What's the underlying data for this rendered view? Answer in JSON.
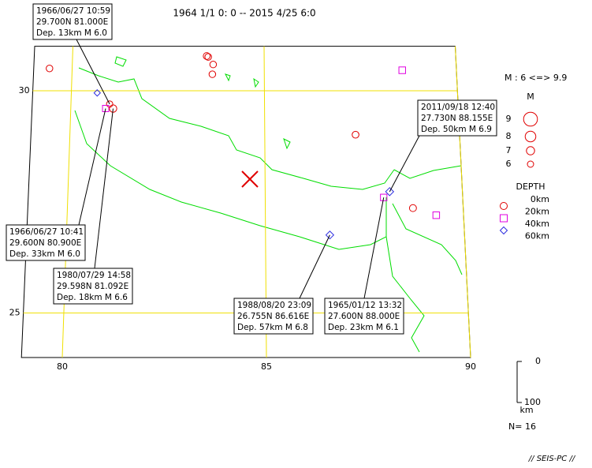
{
  "title": "1964 1/1 0: 0 -- 2015 4/25 6:0",
  "map": {
    "lon_range": [
      79,
      90
    ],
    "lat_range": [
      24,
      31
    ],
    "lon_ticks": [
      80,
      85,
      90
    ],
    "lat_ticks": [
      25,
      30
    ]
  },
  "legend": {
    "magnitude_range": "M : 6 <=> 9.9",
    "magnitude_title": "M",
    "magnitudes": [
      9,
      8,
      7,
      6
    ],
    "depth_title": "DEPTH",
    "depths": [
      {
        "value": 0,
        "label": "0km"
      },
      {
        "value": 20,
        "label": "20km"
      },
      {
        "value": 40,
        "label": "40km"
      },
      {
        "value": 60,
        "label": "60km"
      }
    ],
    "depth_scale": {
      "ticks": [
        0,
        100
      ],
      "unit": "km"
    }
  },
  "count": "N= 16",
  "footer": "// SEIS-PC //",
  "events": [
    {
      "lon": 81.0,
      "lat": 29.7,
      "depth": 13,
      "mag": 6.0,
      "callout": {
        "time": "1966/06/27 10:59",
        "position": "29.700N  81.000E",
        "detail": "Dep. 13km   M 6.0"
      }
    },
    {
      "lon": 80.9,
      "lat": 29.6,
      "depth": 33,
      "mag": 6.0,
      "callout": {
        "time": "1966/06/27 10:41",
        "position": "29.600N  80.900E",
        "detail": "Dep. 33km   M 6.0"
      }
    },
    {
      "lon": 81.092,
      "lat": 29.598,
      "depth": 18,
      "mag": 6.6,
      "callout": {
        "time": "1980/07/29 14:58",
        "position": "29.598N  81.092E",
        "detail": "Dep. 18km   M 6.6"
      }
    },
    {
      "lon": 86.616,
      "lat": 26.755,
      "depth": 57,
      "mag": 6.8,
      "callout": {
        "time": "1988/08/20 23:09",
        "position": "26.755N  86.616E",
        "detail": "Dep. 57km   M 6.8"
      }
    },
    {
      "lon": 88.0,
      "lat": 27.6,
      "depth": 23,
      "mag": 6.1,
      "callout": {
        "time": "1965/01/12 13:32",
        "position": "27.600N  88.000E",
        "detail": "Dep. 23km   M 6.1"
      }
    },
    {
      "lon": 88.155,
      "lat": 27.73,
      "depth": 50,
      "mag": 6.9,
      "callout": {
        "time": "2011/09/18 12:40",
        "position": "27.730N  88.155E",
        "detail": "Dep. 50km   M 6.9"
      }
    },
    {
      "lon": 79.41,
      "lat": 30.5,
      "depth": 5,
      "mag": 6.2
    },
    {
      "lon": 83.5,
      "lat": 30.78,
      "depth": 10,
      "mag": 6.3
    },
    {
      "lon": 83.54,
      "lat": 30.76,
      "depth": 10,
      "mag": 6.2
    },
    {
      "lon": 83.67,
      "lat": 30.59,
      "depth": 10,
      "mag": 6.2
    },
    {
      "lon": 83.65,
      "lat": 30.37,
      "depth": 10,
      "mag": 6.2
    },
    {
      "lon": 80.67,
      "lat": 29.95,
      "depth": 45,
      "mag": 6.0
    },
    {
      "lon": 87.33,
      "lat": 29.01,
      "depth": 10,
      "mag": 6.3
    },
    {
      "lon": 88.73,
      "lat": 27.36,
      "depth": 15,
      "mag": 6.4
    },
    {
      "lon": 88.59,
      "lat": 30.46,
      "depth": 30,
      "mag": 6.2
    },
    {
      "lon": 89.31,
      "lat": 27.2,
      "depth": 30,
      "mag": 6.2
    }
  ]
}
